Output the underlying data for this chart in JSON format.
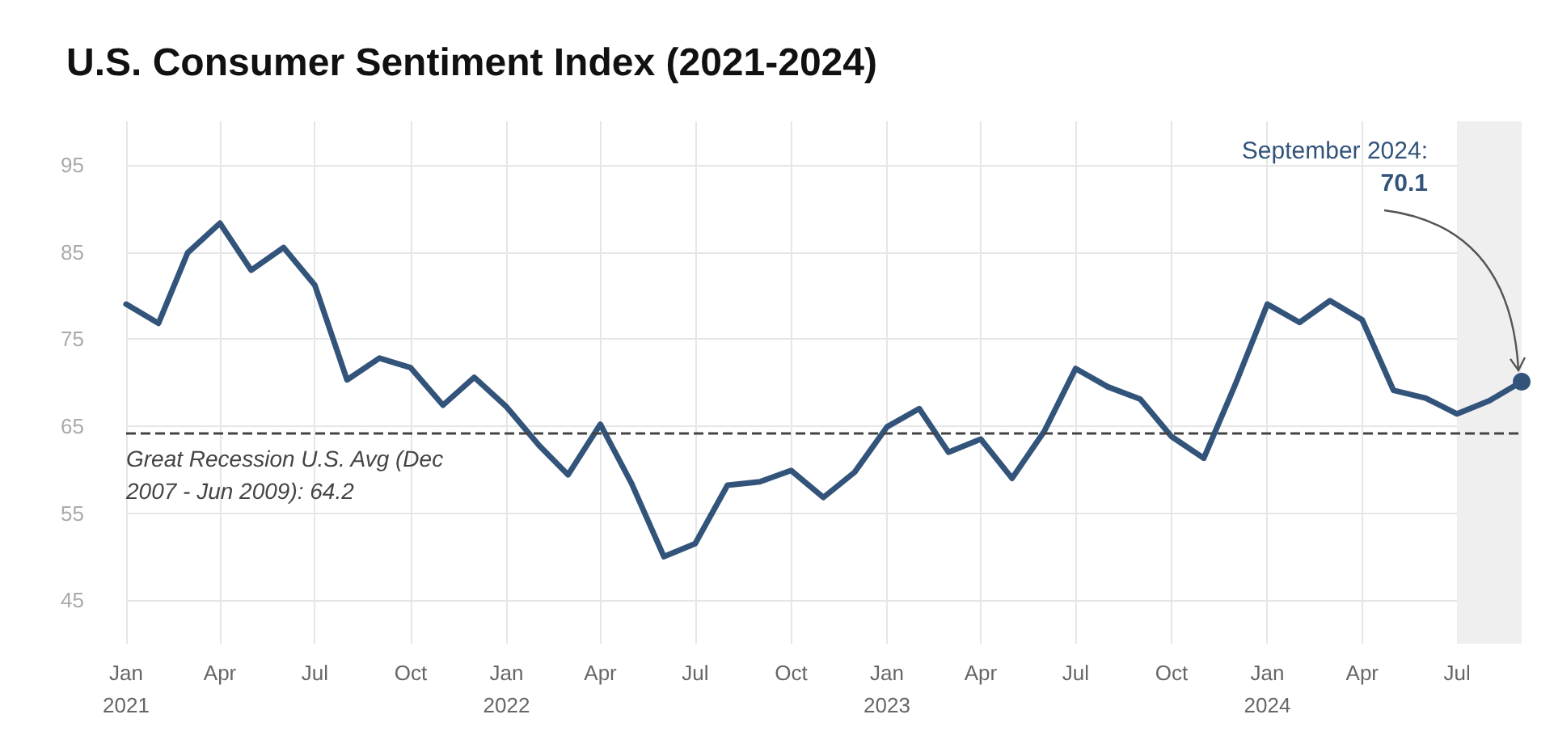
{
  "chart_data": {
    "type": "line",
    "title": "U.S. Consumer Sentiment Index (2021-2024)",
    "x": [
      "2021-01",
      "2021-02",
      "2021-03",
      "2021-04",
      "2021-05",
      "2021-06",
      "2021-07",
      "2021-08",
      "2021-09",
      "2021-10",
      "2021-11",
      "2021-12",
      "2022-01",
      "2022-02",
      "2022-03",
      "2022-04",
      "2022-05",
      "2022-06",
      "2022-07",
      "2022-08",
      "2022-09",
      "2022-10",
      "2022-11",
      "2022-12",
      "2023-01",
      "2023-02",
      "2023-03",
      "2023-04",
      "2023-05",
      "2023-06",
      "2023-07",
      "2023-08",
      "2023-09",
      "2023-10",
      "2023-11",
      "2023-12",
      "2024-01",
      "2024-02",
      "2024-03",
      "2024-04",
      "2024-05",
      "2024-06",
      "2024-07",
      "2024-08",
      "2024-09"
    ],
    "series": [
      {
        "color": "#33547a",
        "values": [
          79.0,
          76.8,
          84.9,
          88.3,
          82.9,
          85.5,
          81.2,
          70.3,
          72.8,
          71.7,
          67.4,
          70.6,
          67.2,
          62.8,
          59.4,
          65.2,
          58.4,
          50.0,
          51.5,
          58.2,
          58.6,
          59.9,
          56.8,
          59.7,
          64.9,
          67.0,
          62.0,
          63.5,
          59.0,
          64.4,
          71.6,
          69.5,
          68.1,
          63.8,
          61.3,
          69.7,
          79.0,
          76.9,
          79.4,
          77.2,
          69.1,
          68.2,
          66.4,
          67.9,
          70.1
        ]
      }
    ],
    "xlim": [
      "2021-01",
      "2024-09"
    ],
    "xticks": [
      {
        "value": "2021-01",
        "label": "Jan\n2021"
      },
      {
        "value": "2021-04",
        "label": "Apr"
      },
      {
        "value": "2021-07",
        "label": "Jul"
      },
      {
        "value": "2021-10",
        "label": "Oct"
      },
      {
        "value": "2022-01",
        "label": "Jan\n2022"
      },
      {
        "value": "2022-04",
        "label": "Apr"
      },
      {
        "value": "2022-07",
        "label": "Jul"
      },
      {
        "value": "2022-10",
        "label": "Oct"
      },
      {
        "value": "2023-01",
        "label": "Jan\n2023"
      },
      {
        "value": "2023-04",
        "label": "Apr"
      },
      {
        "value": "2023-07",
        "label": "Jul"
      },
      {
        "value": "2023-10",
        "label": "Oct"
      },
      {
        "value": "2024-01",
        "label": "Jan\n2024"
      },
      {
        "value": "2024-04",
        "label": "Apr"
      },
      {
        "value": "2024-07",
        "label": "Jul"
      }
    ],
    "ylim": [
      40,
      100
    ],
    "yticks": [
      45,
      55,
      65,
      75,
      85,
      95
    ],
    "grid": true,
    "marker": "none",
    "line_style": "solid",
    "ref_lines": [
      {
        "axis": "y",
        "value": 64.2,
        "label": "Great Recession U.S. Avg (Dec 2007 - Jun 2009): 64.2",
        "color": "#444444",
        "line_style": "dashed"
      }
    ],
    "bands": [
      {
        "axis": "x",
        "from": "2024-07",
        "to": "2024-09",
        "color": "#efefef"
      }
    ],
    "annotations": [
      {
        "text": "September 2024: 70.1",
        "x": "2024-09",
        "y": 70.1
      }
    ]
  }
}
